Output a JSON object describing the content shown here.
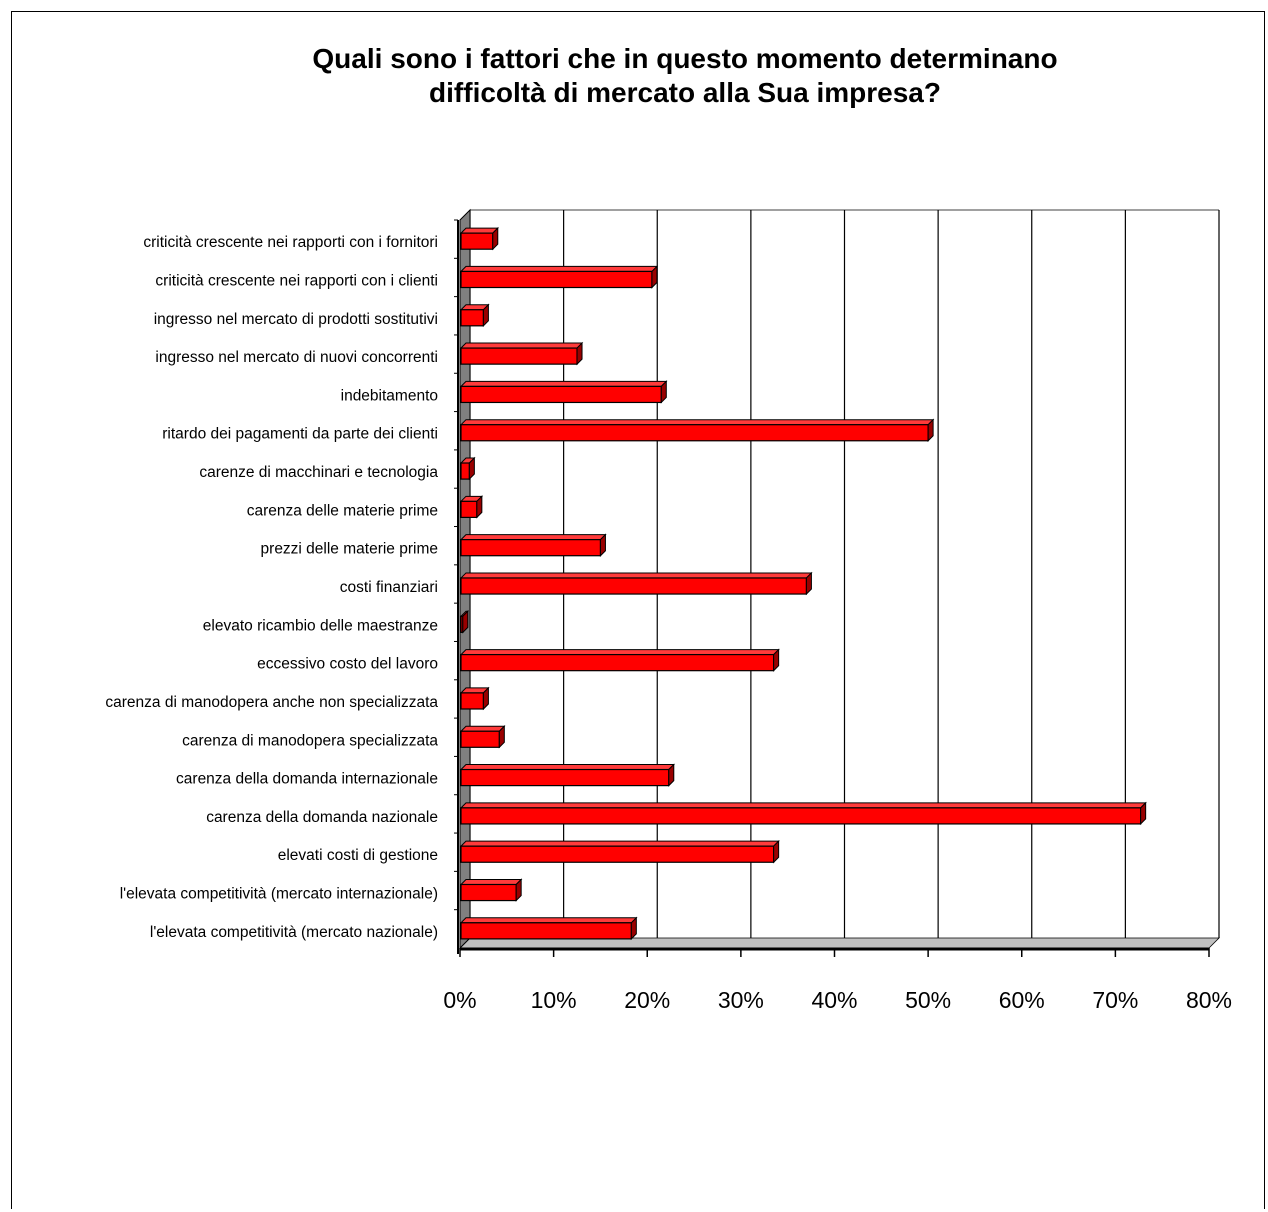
{
  "chart_data": {
    "type": "bar",
    "orientation": "horizontal",
    "title": "Quali sono i fattori che in questo momento determinano difficoltà di mercato alla Sua impresa?",
    "title_lines": [
      "Quali sono i fattori che in questo momento determinano",
      "difficoltà di mercato alla Sua impresa?"
    ],
    "categories": [
      "criticità crescente nei rapporti con i fornitori",
      "criticità crescente nei rapporti con i clienti",
      "ingresso nel mercato di prodotti sostitutivi",
      "ingresso nel mercato di nuovi concorrenti",
      "indebitamento",
      "ritardo dei pagamenti da parte dei clienti",
      "carenze di macchinari e tecnologia",
      "carenza delle materie prime",
      "prezzi delle materie prime",
      "costi finanziari",
      "elevato ricambio delle maestranze",
      "eccessivo costo del lavoro",
      "carenza di manodopera anche non specializzata",
      "carenza di manodopera specializzata",
      "carenza della domanda internazionale",
      "carenza della domanda nazionale",
      "elevati costi di gestione",
      "l'elevata competitività (mercato internazionale)",
      "l'elevata competitività (mercato nazionale)"
    ],
    "values": [
      3.5,
      20.5,
      2.5,
      12.5,
      21.5,
      50,
      1,
      1.8,
      15,
      37,
      0.3,
      33.5,
      2.5,
      4.2,
      22.3,
      72.7,
      33.5,
      6,
      18.3
    ],
    "xlim": [
      0,
      80
    ],
    "x_ticks": [
      "0%",
      "10%",
      "20%",
      "30%",
      "40%",
      "50%",
      "60%",
      "70%",
      "80%"
    ],
    "xlabel": "",
    "ylabel": "",
    "grid": true,
    "legend": "none",
    "bar_color": "#ff0000",
    "bar_top_color": "#ff3b3b",
    "bar_side_color": "#990000",
    "wall_side_color": "#808080",
    "floor_color": "#c0c0c0"
  }
}
